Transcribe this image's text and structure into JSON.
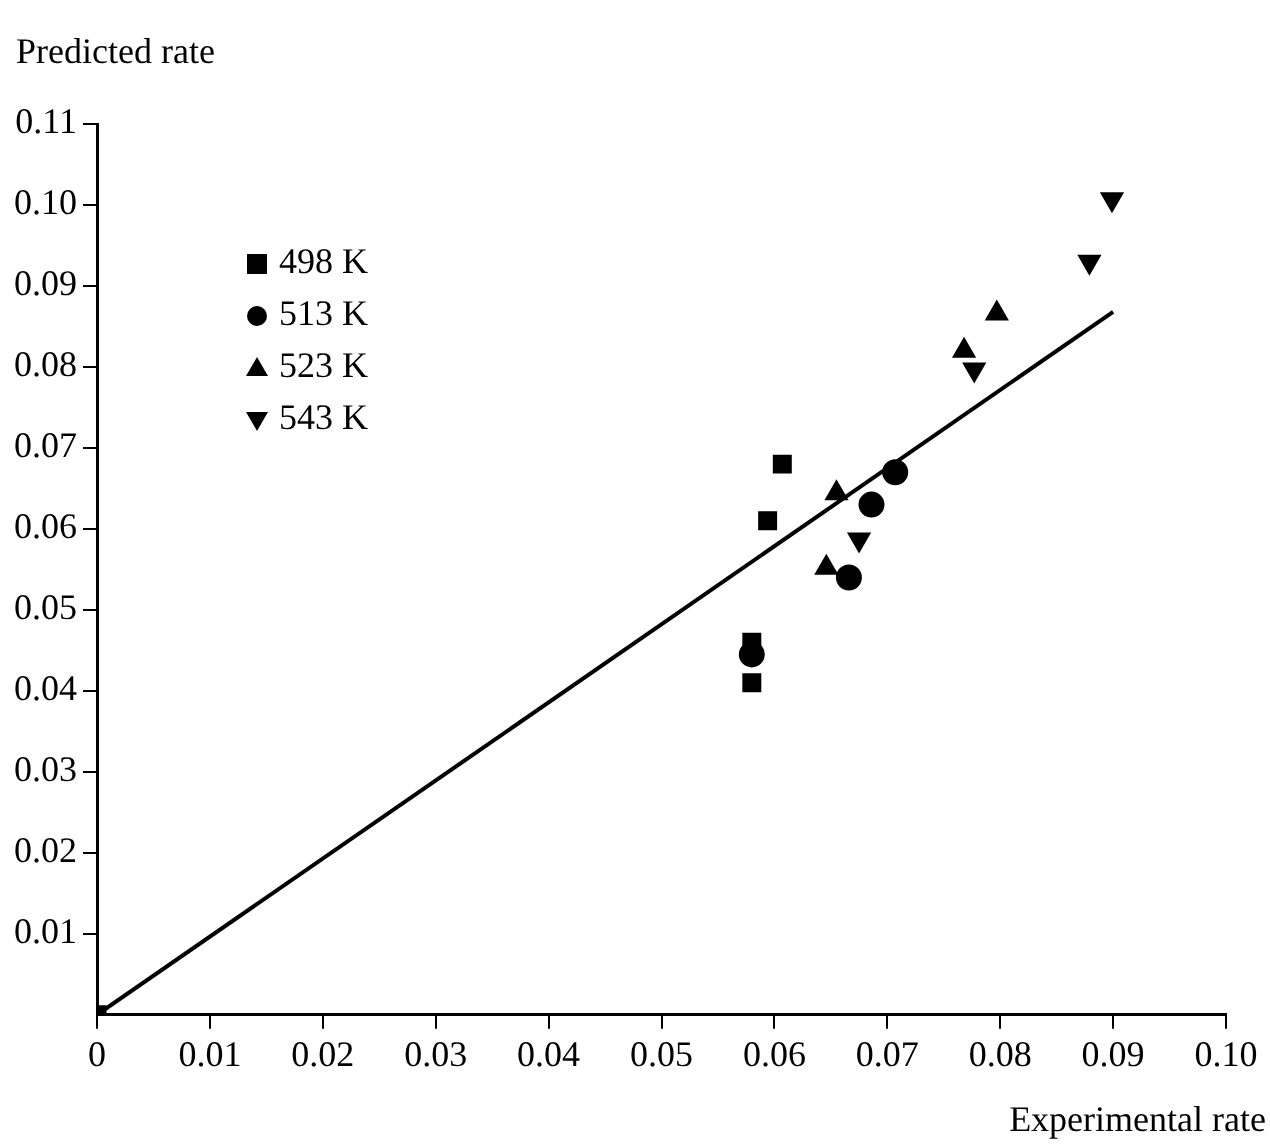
{
  "chart_data": {
    "type": "scatter",
    "xlabel": "Experimental rate",
    "ylabel": "Predicted rate",
    "xlim": [
      0,
      0.1
    ],
    "ylim": [
      0,
      0.11
    ],
    "xticks": [
      0,
      0.01,
      0.02,
      0.03,
      0.04,
      0.05,
      0.06,
      0.07,
      0.08,
      0.09,
      {
        "value": 0.1,
        "label": "0.10"
      }
    ],
    "yticks": [
      0.01,
      0.02,
      0.03,
      0.04,
      0.05,
      0.06,
      0.07,
      0.08,
      0.09,
      {
        "value": 0.1,
        "label": "0.10"
      },
      0.11
    ],
    "grid": false,
    "legend": "top left",
    "series": [
      {
        "name": "498 K",
        "color": "#000000",
        "marker": "square",
        "x": [
          0,
          0.058,
          0.058,
          0.0594,
          0.0607
        ],
        "values": [
          0,
          0.046,
          0.041,
          0.061,
          0.068
        ]
      },
      {
        "name": "513 K",
        "color": "#000000",
        "marker": "circle",
        "x": [
          0.058,
          0.0666,
          0.0686,
          0.0707
        ],
        "values": [
          0.0445,
          0.054,
          0.063,
          0.067
        ]
      },
      {
        "name": "523 K",
        "color": "#000000",
        "marker": "triangle",
        "x": [
          0.0646,
          0.0655,
          0.0768,
          0.0797
        ],
        "values": [
          0.0552,
          0.0644,
          0.082,
          0.0866
        ]
      },
      {
        "name": "543 K",
        "color": "#000000",
        "marker": "triangle-down",
        "x": [
          0.0675,
          0.0777,
          0.0879,
          0.0899
        ],
        "values": [
          0.0587,
          0.0797,
          0.093,
          0.1007
        ]
      },
      {
        "type": "line",
        "color": "#000000",
        "marker": "none",
        "x": [
          0,
          0.09
        ],
        "values": [
          0,
          0.0868
        ]
      }
    ]
  }
}
